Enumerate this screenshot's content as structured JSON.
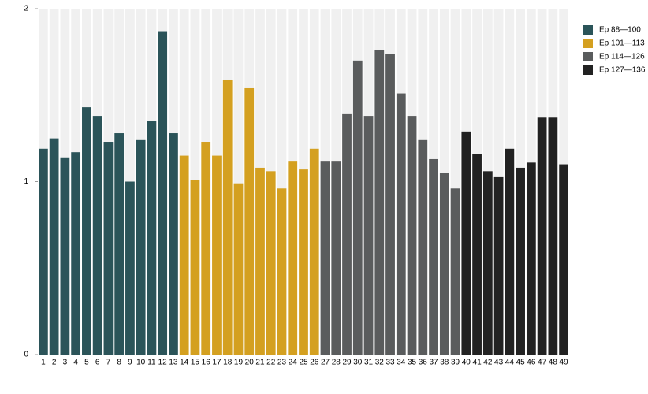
{
  "chart_data": {
    "type": "bar",
    "categories": [
      "1",
      "2",
      "3",
      "4",
      "5",
      "6",
      "7",
      "8",
      "9",
      "10",
      "11",
      "12",
      "13",
      "14",
      "15",
      "16",
      "17",
      "18",
      "19",
      "20",
      "21",
      "22",
      "23",
      "24",
      "25",
      "26",
      "27",
      "28",
      "29",
      "30",
      "31",
      "32",
      "33",
      "34",
      "35",
      "36",
      "37",
      "38",
      "39",
      "40",
      "41",
      "42",
      "43",
      "44",
      "45",
      "46",
      "47",
      "48",
      "49"
    ],
    "series": [
      {
        "name": "Ep 88—100",
        "color": "#2b5459",
        "values": [
          1.19,
          1.25,
          1.14,
          1.17,
          1.43,
          1.38,
          1.23,
          1.28,
          1.0,
          1.24,
          1.35,
          1.87,
          1.28,
          null,
          null,
          null,
          null,
          null,
          null,
          null,
          null,
          null,
          null,
          null,
          null,
          null,
          null,
          null,
          null,
          null,
          null,
          null,
          null,
          null,
          null,
          null,
          null,
          null,
          null,
          null,
          null,
          null,
          null,
          null,
          null,
          null,
          null,
          null,
          null
        ]
      },
      {
        "name": "Ep 101—113",
        "color": "#d4a020",
        "values": [
          null,
          null,
          null,
          null,
          null,
          null,
          null,
          null,
          null,
          null,
          null,
          null,
          null,
          1.15,
          1.01,
          1.23,
          1.15,
          1.59,
          0.99,
          1.54,
          1.08,
          1.06,
          0.96,
          1.12,
          1.07,
          1.19,
          null,
          null,
          null,
          null,
          null,
          null,
          null,
          null,
          null,
          null,
          null,
          null,
          null,
          null,
          null,
          null,
          null,
          null,
          null,
          null,
          null,
          null,
          null
        ]
      },
      {
        "name": "Ep 114—126",
        "color": "#5a5c5d",
        "values": [
          null,
          null,
          null,
          null,
          null,
          null,
          null,
          null,
          null,
          null,
          null,
          null,
          null,
          null,
          null,
          null,
          null,
          null,
          null,
          null,
          null,
          null,
          null,
          null,
          null,
          null,
          1.12,
          1.12,
          1.39,
          1.7,
          1.38,
          1.76,
          1.74,
          1.51,
          1.38,
          1.24,
          1.13,
          1.05,
          0.96,
          null,
          null,
          null,
          null,
          null,
          null,
          null,
          null,
          null,
          null
        ]
      },
      {
        "name": "Ep 127—136",
        "color": "#222222",
        "values": [
          null,
          null,
          null,
          null,
          null,
          null,
          null,
          null,
          null,
          null,
          null,
          null,
          null,
          null,
          null,
          null,
          null,
          null,
          null,
          null,
          null,
          null,
          null,
          null,
          null,
          null,
          null,
          null,
          null,
          null,
          null,
          null,
          null,
          null,
          null,
          null,
          null,
          null,
          null,
          1.29,
          1.16,
          1.06,
          1.03,
          1.19,
          1.08,
          1.11,
          1.37,
          1.37,
          1.1
        ]
      }
    ],
    "ylim": [
      0,
      2
    ],
    "yticks": [
      0,
      1,
      2
    ],
    "legend": "right"
  }
}
